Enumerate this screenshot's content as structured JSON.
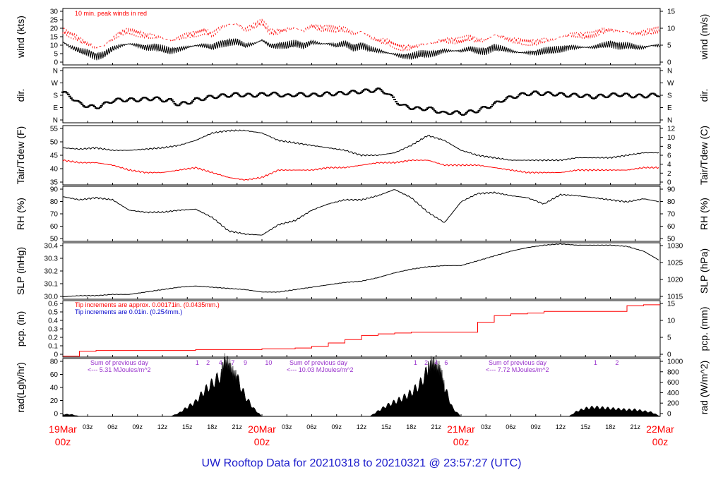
{
  "footer_title": "UW Rooftop Data for 20210318  to  20210321 @ 23:57:27  (UTC)",
  "colors": {
    "accent_red": "#ff0000",
    "blue": "#0000cc",
    "purple": "#9933cc",
    "footer_blue": "#1a1acc"
  },
  "x_axis": {
    "hour_ticks": [
      "03z",
      "06z",
      "09z",
      "12z",
      "15z",
      "18z",
      "21z",
      "03z",
      "06z",
      "09z",
      "12z",
      "15z",
      "18z",
      "21z",
      "03z",
      "06z",
      "09z",
      "12z",
      "15z",
      "18z",
      "21z"
    ],
    "day_labels": [
      {
        "date": "19Mar",
        "hour": "00z",
        "hours_from_start": 0
      },
      {
        "date": "20Mar",
        "hour": "00z",
        "hours_from_start": 24
      },
      {
        "date": "21Mar",
        "hour": "00z",
        "hours_from_start": 48
      },
      {
        "date": "22Mar",
        "hour": "00z",
        "hours_from_start": 72
      }
    ]
  },
  "chart_data": [
    {
      "type": "line",
      "id": "wind",
      "ylabel_left": "wind (kts)",
      "ylabel_right": "wind (m/s)",
      "ylim": [
        0,
        32
      ],
      "left_ticks": [
        "0",
        "5",
        "10",
        "15",
        "20",
        "25",
        "30"
      ],
      "right_ticks": [
        "0",
        "5",
        "10",
        "15"
      ],
      "annotation": "10 min. peak winds in red",
      "series": [
        {
          "x": [
            0,
            1,
            2,
            3,
            4,
            5,
            6,
            7,
            8,
            9,
            10,
            11,
            12,
            13,
            14,
            15,
            16,
            17,
            18,
            19,
            20,
            21,
            22,
            23,
            24,
            25,
            26,
            27,
            28,
            29,
            30,
            31,
            32,
            33,
            34,
            35,
            36,
            37,
            38,
            39,
            40,
            41,
            42,
            43,
            44,
            45,
            46,
            47,
            48,
            49,
            50,
            51,
            52,
            53,
            54,
            55,
            56,
            57,
            58,
            59,
            60,
            61,
            62,
            63,
            64,
            65,
            66,
            67,
            68,
            69,
            70,
            71,
            72
          ],
          "values": [
            13,
            10,
            8,
            7,
            5,
            6,
            9,
            11,
            12,
            11,
            10,
            10,
            9,
            8,
            9,
            10,
            11,
            11,
            10,
            12,
            13,
            13,
            11,
            12,
            14,
            11,
            11,
            11,
            12,
            11,
            13,
            12,
            12,
            11,
            12,
            10,
            11,
            9,
            8,
            7,
            6,
            5,
            5,
            6,
            6,
            7,
            8,
            8,
            8,
            9,
            8,
            8,
            10,
            9,
            8,
            7,
            7,
            7,
            8,
            8,
            9,
            10,
            10,
            10,
            10,
            11,
            12,
            11,
            11,
            10,
            10,
            11,
            11
          ]
        },
        {
          "x": [
            0,
            1,
            2,
            3,
            4,
            5,
            6,
            7,
            8,
            9,
            10,
            11,
            12,
            13,
            14,
            15,
            16,
            17,
            18,
            19,
            20,
            21,
            22,
            23,
            24,
            25,
            26,
            27,
            28,
            29,
            30,
            31,
            32,
            33,
            34,
            35,
            36,
            37,
            38,
            39,
            40,
            41,
            42,
            43,
            44,
            45,
            46,
            47,
            48,
            49,
            50,
            51,
            52,
            53,
            54,
            55,
            56,
            57,
            58,
            59,
            60,
            61,
            62,
            63,
            64,
            65,
            66,
            67,
            68,
            69,
            70,
            71,
            72
          ],
          "values": [
            20,
            17,
            14,
            12,
            10,
            11,
            15,
            18,
            19,
            18,
            17,
            16,
            15,
            14,
            15,
            17,
            18,
            19,
            17,
            21,
            23,
            23,
            20,
            22,
            24,
            19,
            19,
            20,
            21,
            19,
            22,
            21,
            21,
            20,
            20,
            18,
            19,
            16,
            14,
            13,
            11,
            10,
            10,
            11,
            12,
            13,
            14,
            14,
            14,
            15,
            14,
            14,
            17,
            16,
            14,
            13,
            13,
            13,
            14,
            14,
            16,
            17,
            17,
            17,
            17,
            19,
            20,
            19,
            19,
            18,
            18,
            19,
            20
          ]
        }
      ]
    },
    {
      "type": "scatter",
      "id": "dir",
      "ylabel_left": "dir.",
      "ylabel_right": "dir.",
      "ylim": [
        0,
        360
      ],
      "left_ticks": [
        "N",
        "E",
        "S",
        "W",
        "N"
      ],
      "right_ticks": [
        "N",
        "E",
        "S",
        "W",
        "N"
      ],
      "x": [
        0,
        1,
        2,
        3,
        4,
        5,
        6,
        7,
        8,
        9,
        10,
        11,
        12,
        13,
        14,
        15,
        16,
        17,
        18,
        19,
        20,
        21,
        22,
        23,
        24,
        25,
        26,
        27,
        28,
        29,
        30,
        31,
        32,
        33,
        34,
        35,
        36,
        37,
        38,
        39,
        40,
        41,
        42,
        43,
        44,
        45,
        46,
        47,
        48,
        49,
        50,
        51,
        52,
        53,
        54,
        55,
        56,
        57,
        58,
        59,
        60,
        61,
        62,
        63,
        64,
        65,
        66,
        67,
        68,
        69,
        70,
        71,
        72
      ],
      "values": [
        200,
        170,
        125,
        110,
        100,
        120,
        145,
        150,
        150,
        150,
        155,
        160,
        150,
        145,
        120,
        130,
        150,
        160,
        170,
        175,
        180,
        185,
        180,
        180,
        185,
        190,
        185,
        175,
        185,
        185,
        180,
        185,
        190,
        190,
        195,
        200,
        205,
        210,
        215,
        200,
        150,
        110,
        100,
        90,
        95,
        80,
        60,
        70,
        60,
        70,
        80,
        100,
        120,
        150,
        165,
        180,
        190,
        195,
        190,
        190,
        185,
        180,
        180,
        175,
        170,
        175,
        180,
        185,
        180,
        175,
        175,
        180,
        185
      ]
    },
    {
      "type": "line",
      "id": "temp",
      "ylabel_left": "Tair/Tdew (F)",
      "ylabel_right": "Tair/Tdew (C)",
      "ylim": [
        32,
        56
      ],
      "left_ticks": [
        "35",
        "40",
        "45",
        "50",
        "55"
      ],
      "right_ticks": [
        "0",
        "2",
        "4",
        "6",
        "8",
        "10",
        "12"
      ],
      "series": [
        {
          "x": [
            0,
            2,
            4,
            6,
            8,
            10,
            12,
            14,
            16,
            18,
            20,
            22,
            24,
            26,
            28,
            30,
            32,
            34,
            36,
            38,
            40,
            42,
            44,
            46,
            48,
            50,
            52,
            54,
            56,
            58,
            60,
            62,
            64,
            66,
            68,
            70,
            72
          ],
          "values": [
            47,
            46.5,
            47,
            46,
            46,
            46.5,
            47,
            48,
            50,
            53,
            54,
            54,
            53,
            50,
            49,
            48,
            47,
            46,
            44,
            44,
            45,
            48,
            52,
            50,
            46,
            44,
            43,
            42,
            42,
            42,
            42,
            43,
            43,
            43,
            44,
            45,
            45
          ]
        },
        {
          "x": [
            0,
            2,
            4,
            6,
            8,
            10,
            12,
            14,
            16,
            18,
            20,
            22,
            24,
            26,
            28,
            30,
            32,
            34,
            36,
            38,
            40,
            42,
            44,
            46,
            48,
            50,
            52,
            54,
            56,
            58,
            60,
            62,
            64,
            66,
            68,
            70,
            72
          ],
          "values": [
            42,
            41,
            41,
            40,
            38,
            37,
            37,
            38,
            39,
            37,
            35,
            34,
            35,
            38,
            38,
            38,
            39,
            39,
            40,
            41,
            41,
            42,
            42,
            40,
            40,
            40,
            39,
            38,
            37,
            37,
            37,
            38,
            38,
            38,
            38,
            39,
            39
          ]
        }
      ]
    },
    {
      "type": "line",
      "id": "rh",
      "ylabel_left": "RH (%)",
      "ylabel_right": "RH (%)",
      "ylim": [
        42,
        95
      ],
      "left_ticks": [
        "50",
        "60",
        "70",
        "80",
        "90"
      ],
      "right_ticks": [
        "50",
        "60",
        "70",
        "80",
        "90"
      ],
      "series": [
        {
          "x": [
            0,
            2,
            4,
            6,
            8,
            10,
            12,
            14,
            16,
            18,
            20,
            22,
            24,
            26,
            28,
            30,
            32,
            34,
            36,
            38,
            40,
            42,
            44,
            46,
            48,
            50,
            52,
            54,
            56,
            58,
            60,
            62,
            64,
            66,
            68,
            70,
            72
          ],
          "values": [
            85,
            82,
            84,
            82,
            72,
            70,
            70,
            72,
            73,
            65,
            52,
            49,
            48,
            58,
            62,
            72,
            78,
            82,
            82,
            86,
            92,
            84,
            70,
            60,
            80,
            88,
            89,
            86,
            84,
            78,
            87,
            86,
            84,
            82,
            80,
            83,
            80
          ]
        }
      ]
    },
    {
      "type": "line",
      "id": "slp",
      "ylabel_left": "SLP (inHg)",
      "ylabel_right": "SLP (hPa)",
      "ylim": [
        29.95,
        30.42
      ],
      "left_ticks": [
        "30.0",
        "30.1",
        "30.2",
        "30.3",
        "30.4"
      ],
      "right_ticks": [
        "1015",
        "1020",
        "1025",
        "1030"
      ],
      "series": [
        {
          "x": [
            0,
            2,
            4,
            6,
            8,
            10,
            12,
            14,
            16,
            18,
            20,
            22,
            24,
            26,
            28,
            30,
            32,
            34,
            36,
            38,
            40,
            42,
            44,
            46,
            48,
            50,
            52,
            54,
            56,
            58,
            60,
            62,
            64,
            66,
            68,
            70,
            72
          ],
          "values": [
            29.97,
            29.98,
            29.98,
            29.99,
            29.99,
            30.01,
            30.03,
            30.05,
            30.06,
            30.05,
            30.04,
            30.03,
            30.01,
            30.01,
            30.03,
            30.05,
            30.07,
            30.09,
            30.1,
            30.13,
            30.17,
            30.2,
            30.22,
            30.23,
            30.23,
            30.27,
            30.31,
            30.35,
            30.38,
            30.4,
            30.41,
            30.4,
            30.4,
            30.4,
            30.39,
            30.35,
            30.27
          ]
        }
      ]
    },
    {
      "type": "line",
      "id": "pcp",
      "ylabel_left": "pcp. (in)",
      "ylabel_right": "pcp. (mm)",
      "ylim": [
        0,
        0.68
      ],
      "left_ticks": [
        "0",
        "0.1",
        "0.2",
        "0.3",
        "0.4",
        "0.5",
        "0.6"
      ],
      "right_ticks": [
        "0",
        "5",
        "10",
        "15"
      ],
      "annotations": [
        "Tip increments are approx. 0.00171in. (0.0435mm.)",
        "Tip increments are 0.01in. (0.254mm.)"
      ],
      "series": [
        {
          "x": [
            0,
            2,
            4,
            6,
            8,
            10,
            12,
            14,
            16,
            18,
            20,
            22,
            24,
            26,
            28,
            30,
            32,
            34,
            36,
            38,
            40,
            42,
            44,
            46,
            48,
            50,
            52,
            54,
            56,
            58,
            60,
            62,
            64,
            66,
            68,
            70,
            72
          ],
          "values": [
            0.01,
            0.07,
            0.08,
            0.08,
            0.08,
            0.08,
            0.08,
            0.08,
            0.09,
            0.09,
            0.09,
            0.09,
            0.1,
            0.1,
            0.11,
            0.13,
            0.17,
            0.21,
            0.26,
            0.28,
            0.29,
            0.3,
            0.3,
            0.3,
            0.3,
            0.42,
            0.5,
            0.52,
            0.53,
            0.55,
            0.55,
            0.55,
            0.55,
            0.55,
            0.62,
            0.63,
            0.63
          ]
        }
      ]
    },
    {
      "type": "area",
      "id": "rad",
      "ylabel_left": "rad(Lgly/hr)",
      "ylabel_right": "rad (W/m^2)",
      "ylim": [
        0,
        88
      ],
      "left_ticks": [
        "0",
        "20",
        "40",
        "60",
        "80"
      ],
      "right_ticks": [
        "0",
        "200",
        "400",
        "600",
        "800",
        "1000"
      ],
      "annotations": [
        {
          "text": "Sum of previous day",
          "day": 0
        },
        {
          "text": "<--- 5.31 MJoules/m^2",
          "day": 0
        },
        {
          "text": "Sum of previous day",
          "day": 1
        },
        {
          "text": "<--- 10.03 MJoules/m^2",
          "day": 1
        },
        {
          "text": "Sum of previous day",
          "day": 2
        },
        {
          "text": "<--- 7.72 MJoules/m^2",
          "day": 2
        }
      ],
      "hour_marks": [
        "1",
        "2",
        "4",
        "7",
        "9",
        "10",
        "1",
        "2",
        "4",
        "6",
        "1",
        "2"
      ],
      "series": [
        {
          "x": [
            0,
            1,
            2,
            3,
            13,
            14,
            15,
            16,
            17,
            18,
            19,
            19.5,
            20,
            20.5,
            21,
            22,
            23,
            24,
            37,
            38,
            39,
            40,
            41,
            42,
            43,
            44,
            44.5,
            45,
            45.5,
            46,
            47,
            48,
            61,
            62,
            63,
            64,
            65,
            66,
            67,
            68,
            69,
            70,
            71,
            72
          ],
          "values": [
            3,
            3,
            0,
            0,
            0,
            5,
            14,
            22,
            38,
            50,
            62,
            82,
            78,
            65,
            58,
            30,
            12,
            0,
            0,
            8,
            16,
            22,
            28,
            36,
            48,
            70,
            80,
            75,
            70,
            45,
            12,
            0,
            0,
            8,
            12,
            14,
            13,
            12,
            11,
            10,
            10,
            8,
            6,
            0
          ]
        }
      ]
    }
  ]
}
